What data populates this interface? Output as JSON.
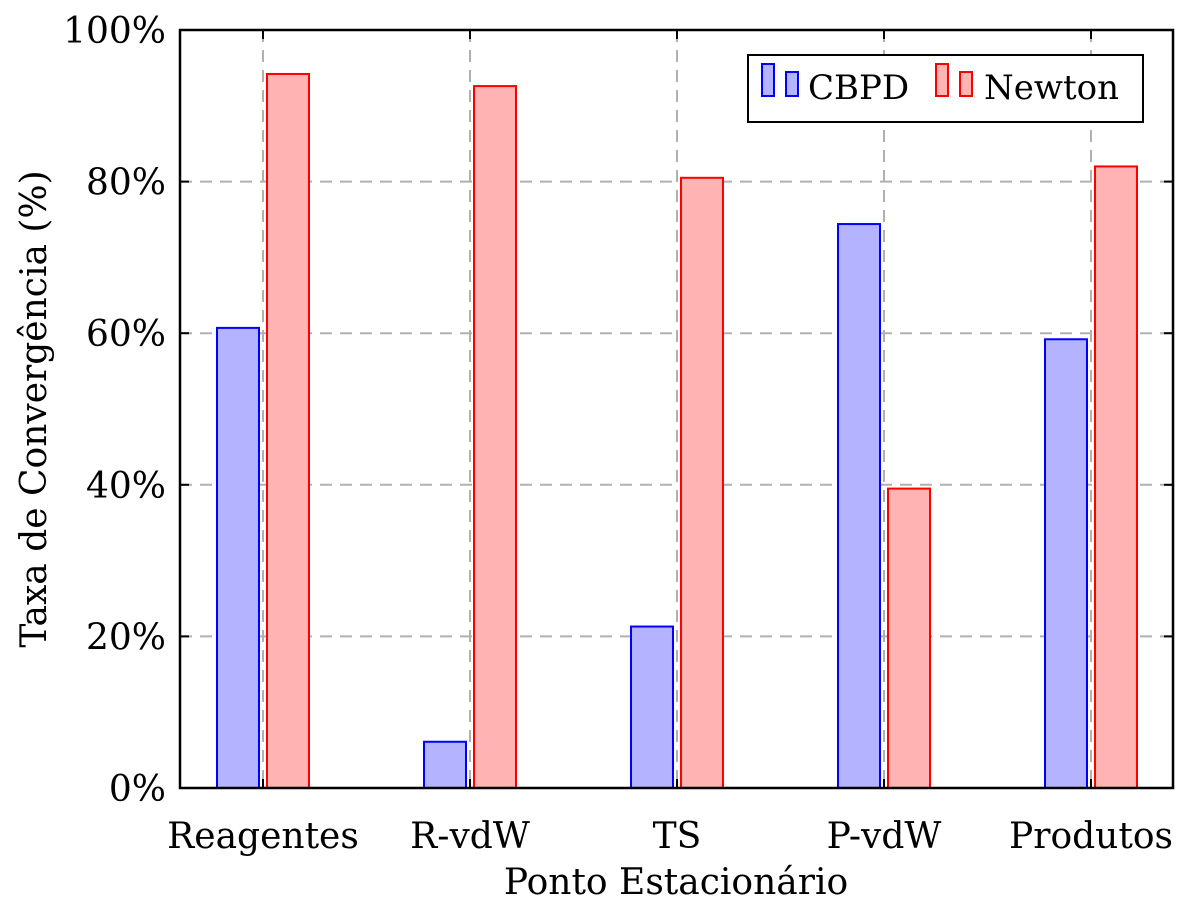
{
  "chart_data": {
    "type": "bar",
    "title": "",
    "xlabel": "Ponto Estacionário",
    "ylabel": "Taxa de Convergência (%)",
    "categories": [
      "Reagentes",
      "R-vdW",
      "TS",
      "P-vdW",
      "Produtos"
    ],
    "series": [
      {
        "name": "CBPD",
        "values": [
          60.7,
          6.1,
          21.3,
          74.4,
          59.2
        ],
        "fill": "#b3b3ff",
        "stroke": "#0000ff"
      },
      {
        "name": "Newton",
        "values": [
          94.2,
          92.6,
          80.5,
          39.5,
          82.0
        ],
        "fill": "#ffb3b3",
        "stroke": "#ff0000"
      }
    ],
    "ylim": [
      0,
      100
    ],
    "yticks": [
      0,
      20,
      40,
      60,
      80,
      100
    ],
    "ytick_labels": [
      "0%",
      "20%",
      "40%",
      "60%",
      "80%",
      "100%"
    ],
    "grid": true,
    "legend_position": "top-right"
  }
}
